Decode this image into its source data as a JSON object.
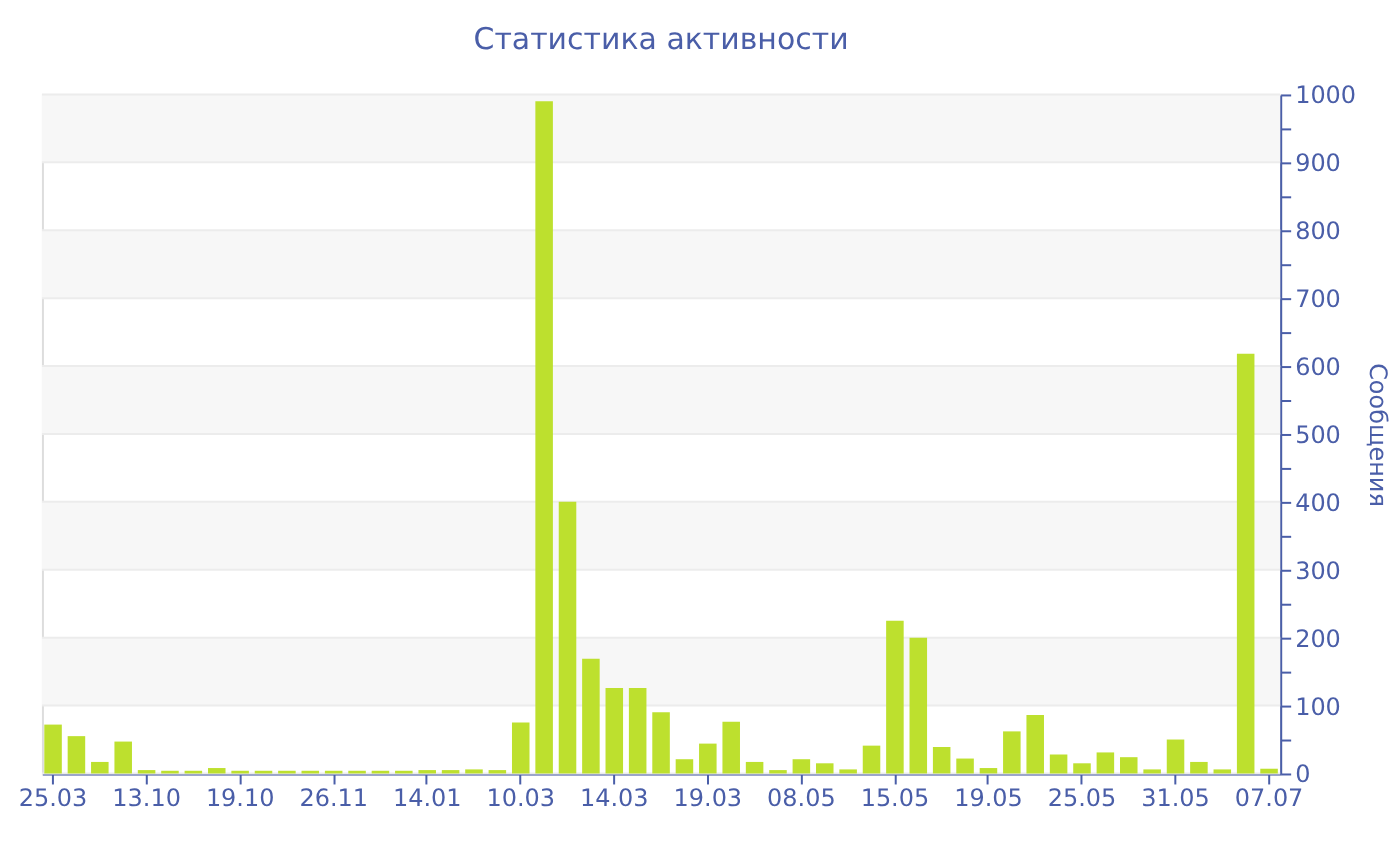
{
  "chart_data": {
    "type": "bar",
    "title": "Статистика активности",
    "ylabel": "Сообщения",
    "categories": [
      "25.03",
      null,
      null,
      null,
      "13.10",
      null,
      null,
      null,
      "19.10",
      null,
      null,
      null,
      "26.11",
      null,
      null,
      null,
      "14.01",
      null,
      null,
      null,
      "10.03",
      null,
      null,
      null,
      "14.03",
      null,
      null,
      null,
      "19.03",
      null,
      null,
      null,
      "08.05",
      null,
      null,
      null,
      "15.05",
      null,
      null,
      null,
      "19.05",
      null,
      null,
      null,
      "25.05",
      null,
      null,
      null,
      "31.05",
      null,
      null,
      null,
      "07.07"
    ],
    "values": [
      72,
      55,
      17,
      47,
      5,
      4,
      4,
      8,
      4,
      4,
      4,
      4,
      4,
      4,
      4,
      4,
      5,
      5,
      6,
      5,
      75,
      990,
      400,
      169,
      126,
      126,
      90,
      21,
      44,
      76,
      17,
      5,
      21,
      15,
      6,
      41,
      225,
      200,
      39,
      22,
      8,
      62,
      86,
      28,
      15,
      31,
      24,
      6,
      50,
      17,
      6,
      618,
      7
    ],
    "color": "#bde02e",
    "ylim": [
      0,
      1000
    ],
    "yticks": [
      0,
      {
        "value": 50,
        "label": null
      },
      100,
      {
        "value": 150,
        "label": null
      },
      200,
      {
        "value": 250,
        "label": null
      },
      300,
      {
        "value": 350,
        "label": null
      },
      400,
      {
        "value": 450,
        "label": null
      },
      500,
      {
        "value": 550,
        "label": null
      },
      600,
      {
        "value": 650,
        "label": null
      },
      700,
      {
        "value": 750,
        "label": null
      },
      800,
      {
        "value": 850,
        "label": null
      },
      900,
      {
        "value": 950,
        "label": null
      },
      1000
    ],
    "grid": "y"
  }
}
